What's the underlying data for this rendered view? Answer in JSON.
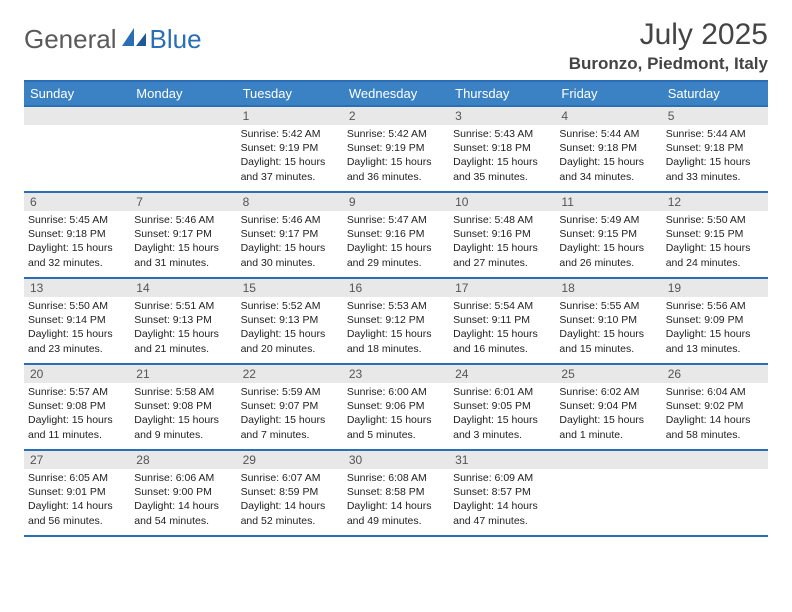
{
  "logo": {
    "part1": "General",
    "part2": "Blue"
  },
  "title": "July 2025",
  "location": "Buronzo, Piedmont, Italy",
  "colors": {
    "header_bg": "#3b82c4",
    "header_text": "#ffffff",
    "rule": "#2a6fb5",
    "daynum_bg": "#e8e8e8",
    "daynum_text": "#555555",
    "body_text": "#222222",
    "page_bg": "#ffffff"
  },
  "typography": {
    "title_fontsize": 30,
    "location_fontsize": 17,
    "weekday_fontsize": 13,
    "cell_fontsize": 10.5
  },
  "layout": {
    "leading_blanks": 2,
    "weeks": 5
  },
  "weekdays": [
    "Sunday",
    "Monday",
    "Tuesday",
    "Wednesday",
    "Thursday",
    "Friday",
    "Saturday"
  ],
  "days": [
    {
      "n": 1,
      "sunrise": "5:42 AM",
      "sunset": "9:19 PM",
      "daylight": "15 hours and 37 minutes."
    },
    {
      "n": 2,
      "sunrise": "5:42 AM",
      "sunset": "9:19 PM",
      "daylight": "15 hours and 36 minutes."
    },
    {
      "n": 3,
      "sunrise": "5:43 AM",
      "sunset": "9:18 PM",
      "daylight": "15 hours and 35 minutes."
    },
    {
      "n": 4,
      "sunrise": "5:44 AM",
      "sunset": "9:18 PM",
      "daylight": "15 hours and 34 minutes."
    },
    {
      "n": 5,
      "sunrise": "5:44 AM",
      "sunset": "9:18 PM",
      "daylight": "15 hours and 33 minutes."
    },
    {
      "n": 6,
      "sunrise": "5:45 AM",
      "sunset": "9:18 PM",
      "daylight": "15 hours and 32 minutes."
    },
    {
      "n": 7,
      "sunrise": "5:46 AM",
      "sunset": "9:17 PM",
      "daylight": "15 hours and 31 minutes."
    },
    {
      "n": 8,
      "sunrise": "5:46 AM",
      "sunset": "9:17 PM",
      "daylight": "15 hours and 30 minutes."
    },
    {
      "n": 9,
      "sunrise": "5:47 AM",
      "sunset": "9:16 PM",
      "daylight": "15 hours and 29 minutes."
    },
    {
      "n": 10,
      "sunrise": "5:48 AM",
      "sunset": "9:16 PM",
      "daylight": "15 hours and 27 minutes."
    },
    {
      "n": 11,
      "sunrise": "5:49 AM",
      "sunset": "9:15 PM",
      "daylight": "15 hours and 26 minutes."
    },
    {
      "n": 12,
      "sunrise": "5:50 AM",
      "sunset": "9:15 PM",
      "daylight": "15 hours and 24 minutes."
    },
    {
      "n": 13,
      "sunrise": "5:50 AM",
      "sunset": "9:14 PM",
      "daylight": "15 hours and 23 minutes."
    },
    {
      "n": 14,
      "sunrise": "5:51 AM",
      "sunset": "9:13 PM",
      "daylight": "15 hours and 21 minutes."
    },
    {
      "n": 15,
      "sunrise": "5:52 AM",
      "sunset": "9:13 PM",
      "daylight": "15 hours and 20 minutes."
    },
    {
      "n": 16,
      "sunrise": "5:53 AM",
      "sunset": "9:12 PM",
      "daylight": "15 hours and 18 minutes."
    },
    {
      "n": 17,
      "sunrise": "5:54 AM",
      "sunset": "9:11 PM",
      "daylight": "15 hours and 16 minutes."
    },
    {
      "n": 18,
      "sunrise": "5:55 AM",
      "sunset": "9:10 PM",
      "daylight": "15 hours and 15 minutes."
    },
    {
      "n": 19,
      "sunrise": "5:56 AM",
      "sunset": "9:09 PM",
      "daylight": "15 hours and 13 minutes."
    },
    {
      "n": 20,
      "sunrise": "5:57 AM",
      "sunset": "9:08 PM",
      "daylight": "15 hours and 11 minutes."
    },
    {
      "n": 21,
      "sunrise": "5:58 AM",
      "sunset": "9:08 PM",
      "daylight": "15 hours and 9 minutes."
    },
    {
      "n": 22,
      "sunrise": "5:59 AM",
      "sunset": "9:07 PM",
      "daylight": "15 hours and 7 minutes."
    },
    {
      "n": 23,
      "sunrise": "6:00 AM",
      "sunset": "9:06 PM",
      "daylight": "15 hours and 5 minutes."
    },
    {
      "n": 24,
      "sunrise": "6:01 AM",
      "sunset": "9:05 PM",
      "daylight": "15 hours and 3 minutes."
    },
    {
      "n": 25,
      "sunrise": "6:02 AM",
      "sunset": "9:04 PM",
      "daylight": "15 hours and 1 minute."
    },
    {
      "n": 26,
      "sunrise": "6:04 AM",
      "sunset": "9:02 PM",
      "daylight": "14 hours and 58 minutes."
    },
    {
      "n": 27,
      "sunrise": "6:05 AM",
      "sunset": "9:01 PM",
      "daylight": "14 hours and 56 minutes."
    },
    {
      "n": 28,
      "sunrise": "6:06 AM",
      "sunset": "9:00 PM",
      "daylight": "14 hours and 54 minutes."
    },
    {
      "n": 29,
      "sunrise": "6:07 AM",
      "sunset": "8:59 PM",
      "daylight": "14 hours and 52 minutes."
    },
    {
      "n": 30,
      "sunrise": "6:08 AM",
      "sunset": "8:58 PM",
      "daylight": "14 hours and 49 minutes."
    },
    {
      "n": 31,
      "sunrise": "6:09 AM",
      "sunset": "8:57 PM",
      "daylight": "14 hours and 47 minutes."
    }
  ]
}
